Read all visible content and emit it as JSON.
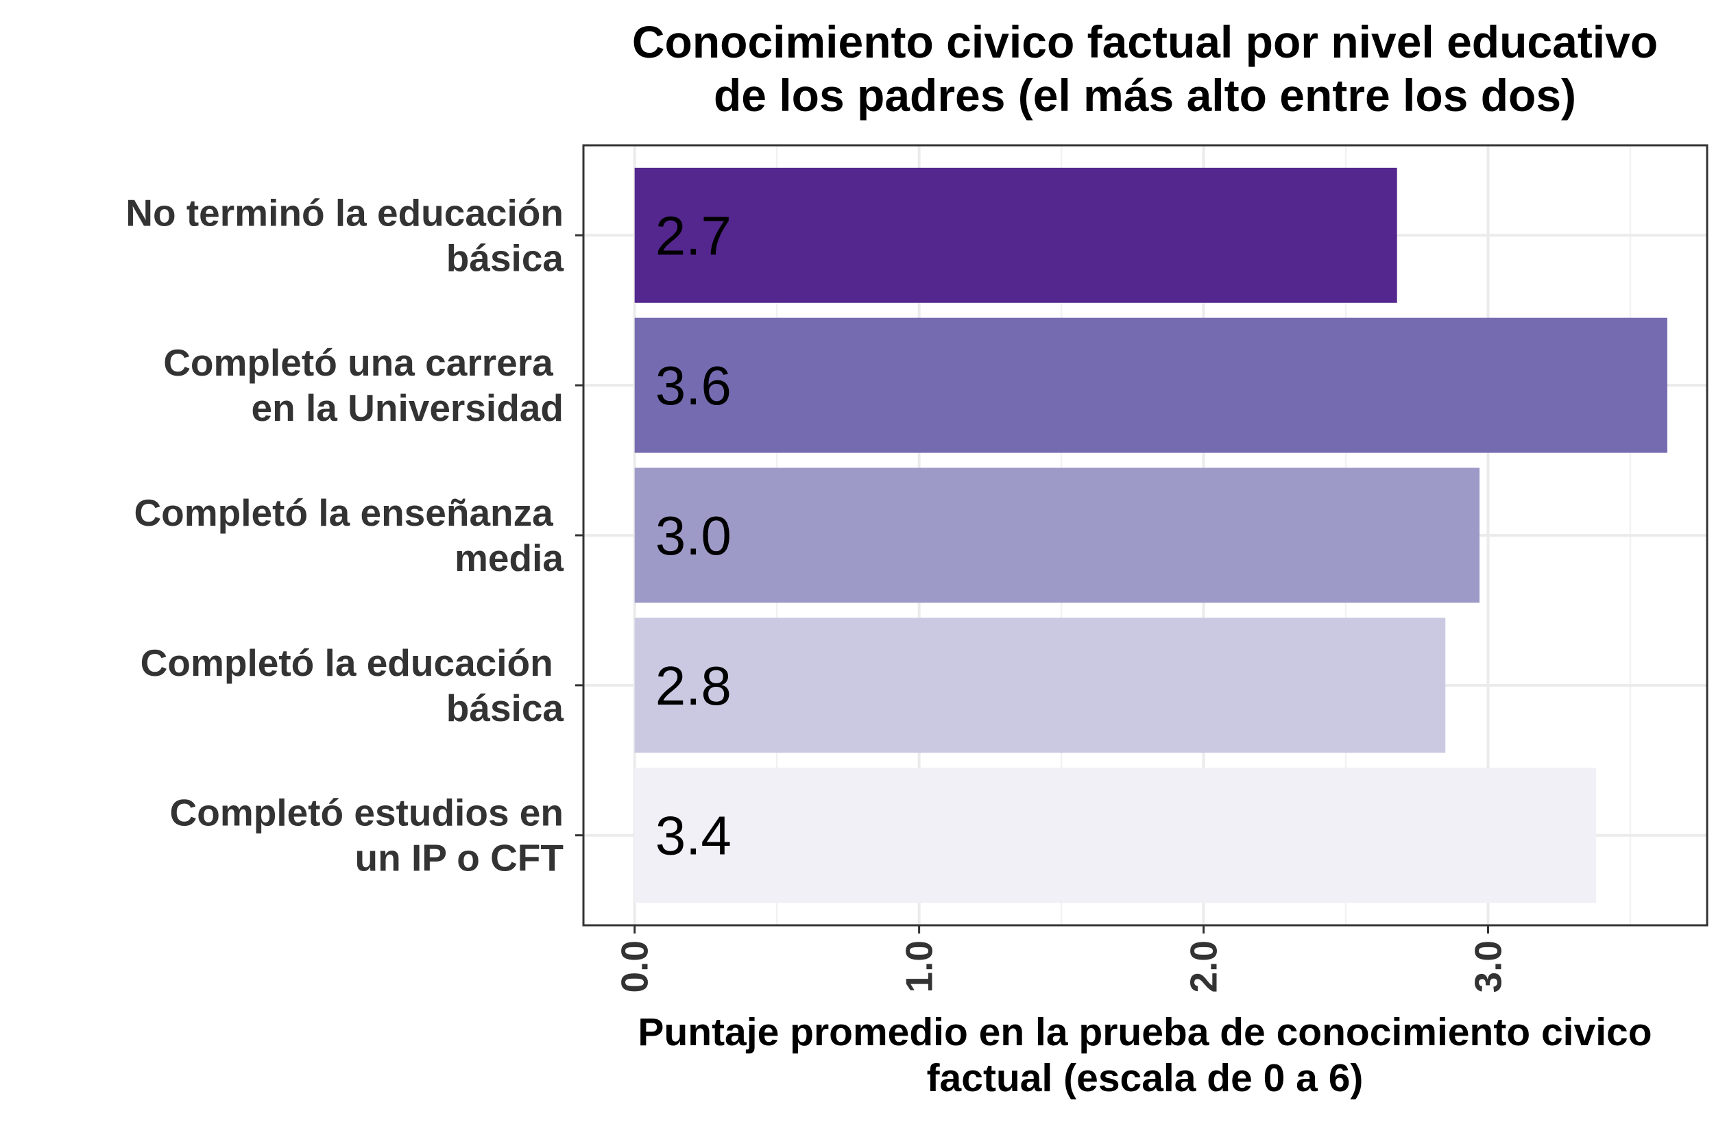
{
  "chart_data": {
    "type": "bar",
    "orientation": "horizontal",
    "title": [
      "Conocimiento civico factual por nivel educativo",
      "de los padres (el más alto entre los dos)"
    ],
    "xlabel": [
      "Puntaje promedio en la prueba de conocimiento civico",
      "factual (escala de 0 a 6)"
    ],
    "categories": [
      [
        "No terminó la educación",
        "básica"
      ],
      [
        "Completó una carrera ",
        "en la Universidad"
      ],
      [
        "Completó la enseñanza ",
        "media"
      ],
      [
        "Completó la educación ",
        "básica"
      ],
      [
        "Completó estudios en",
        "un IP o CFT"
      ]
    ],
    "values": [
      2.68,
      3.63,
      2.97,
      2.85,
      3.38
    ],
    "data_labels": [
      "2.7",
      "3.6",
      "3.0",
      "2.8",
      "3.4"
    ],
    "colors": [
      "#54278f",
      "#756bb1",
      "#9e9ac8",
      "#cbc9e2",
      "#f2f0f7"
    ],
    "x_ticks": [
      0,
      1,
      2,
      3
    ],
    "x_tick_labels": [
      "0.0",
      "1.0",
      "2.0",
      "3.0"
    ],
    "xlim": [
      -0.18,
      3.77
    ],
    "grid": true,
    "legend": "none"
  }
}
